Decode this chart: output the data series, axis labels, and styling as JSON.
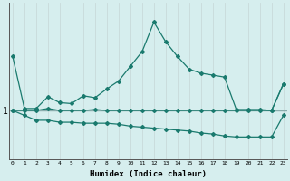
{
  "xlabel": "Humidex (Indice chaleur)",
  "bg_color": "#d6eeee",
  "line_color": "#1a7a6e",
  "grid_color_v": "#c8dada",
  "grid_color_h": "#8aadad",
  "x_values": [
    0,
    1,
    2,
    3,
    4,
    5,
    6,
    7,
    8,
    9,
    10,
    11,
    12,
    13,
    14,
    15,
    16,
    17,
    18,
    19,
    20,
    21,
    22,
    23
  ],
  "line_peak": [
    1.55,
    1.02,
    1.02,
    1.14,
    1.08,
    1.07,
    1.15,
    1.13,
    1.22,
    1.3,
    1.45,
    1.6,
    1.9,
    1.7,
    1.55,
    1.42,
    1.38,
    1.36,
    1.34,
    1.01,
    1.01,
    1.01,
    1.0,
    1.27
  ],
  "line_flat": [
    1.0,
    1.0,
    1.0,
    1.02,
    1.0,
    1.0,
    1.0,
    1.01,
    1.0,
    1.0,
    1.0,
    1.0,
    1.0,
    1.0,
    1.0,
    1.0,
    1.0,
    1.0,
    1.0,
    1.0,
    1.0,
    1.0,
    1.0,
    1.27
  ],
  "line_decline": [
    1.0,
    0.95,
    0.9,
    0.9,
    0.88,
    0.88,
    0.87,
    0.87,
    0.87,
    0.86,
    0.84,
    0.83,
    0.82,
    0.81,
    0.8,
    0.79,
    0.77,
    0.76,
    0.74,
    0.73,
    0.73,
    0.73,
    0.73,
    0.95
  ],
  "ytick_label": "1",
  "ytick_value": 1.0,
  "xlim": [
    -0.3,
    23.3
  ],
  "ylim": [
    0.5,
    2.1
  ]
}
